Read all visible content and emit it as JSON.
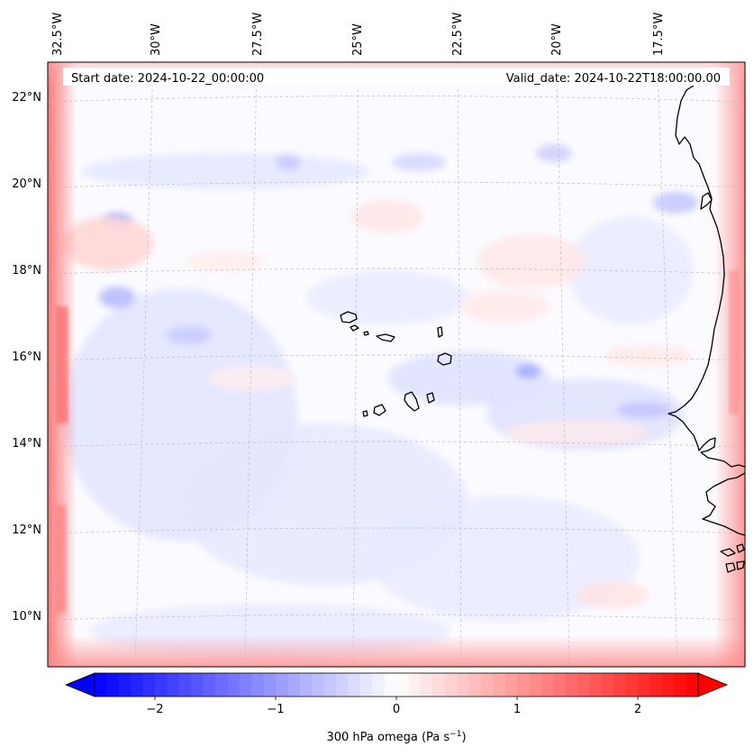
{
  "map": {
    "start_date_label": "Start date: 2024-10-22_00:00:00",
    "valid_date_label": "Valid_date: 2024-10-22T18:00:00.00",
    "longitude_labels": [
      "32.5°W",
      "30°W",
      "27.5°W",
      "25°W",
      "22.5°W",
      "20°W",
      "17.5°W"
    ],
    "latitude_labels": [
      "22°N",
      "20°N",
      "18°N",
      "16°N",
      "14°N",
      "12°N",
      "10°N"
    ],
    "field": "300 hPa omega"
  },
  "colorbar": {
    "ticks": [
      "−2",
      "−1",
      "0",
      "1",
      "2"
    ],
    "tick_values": [
      -2,
      -1,
      0,
      1,
      2
    ],
    "range": [
      -2.5,
      2.5
    ],
    "label_main": "300 hPa omega (Pa s",
    "label_exp": "−1",
    "label_close": ")",
    "colors": {
      "low": "#0000ff",
      "mid": "#ffffff",
      "high": "#ff0000"
    }
  },
  "coastline_color": "#000000",
  "grid_color": "#bbbbbb"
}
